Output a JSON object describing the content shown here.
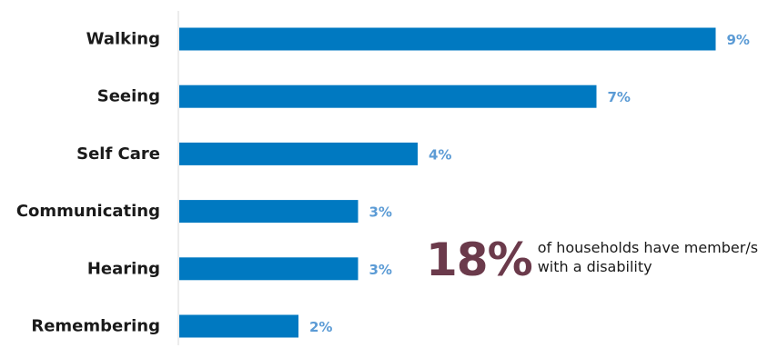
{
  "chart_data": {
    "type": "bar",
    "orientation": "horizontal",
    "categories": [
      "Walking",
      "Seeing",
      "Self Care",
      "Communicating",
      "Hearing",
      "Remembering"
    ],
    "values": [
      9,
      7,
      4,
      3,
      3,
      2
    ],
    "value_labels": [
      "9%",
      "7%",
      "4%",
      "3%",
      "3%",
      "2%"
    ],
    "unit": "%",
    "xlim": [
      0,
      10
    ],
    "grid": false,
    "legend": "none",
    "bar_color": "#0079c1",
    "value_label_color": "#5b9bd5",
    "callout": {
      "value": "18%",
      "text_line1": "of households have member/s",
      "text_line2": "with a disability",
      "value_color": "#6b3a4b"
    }
  }
}
